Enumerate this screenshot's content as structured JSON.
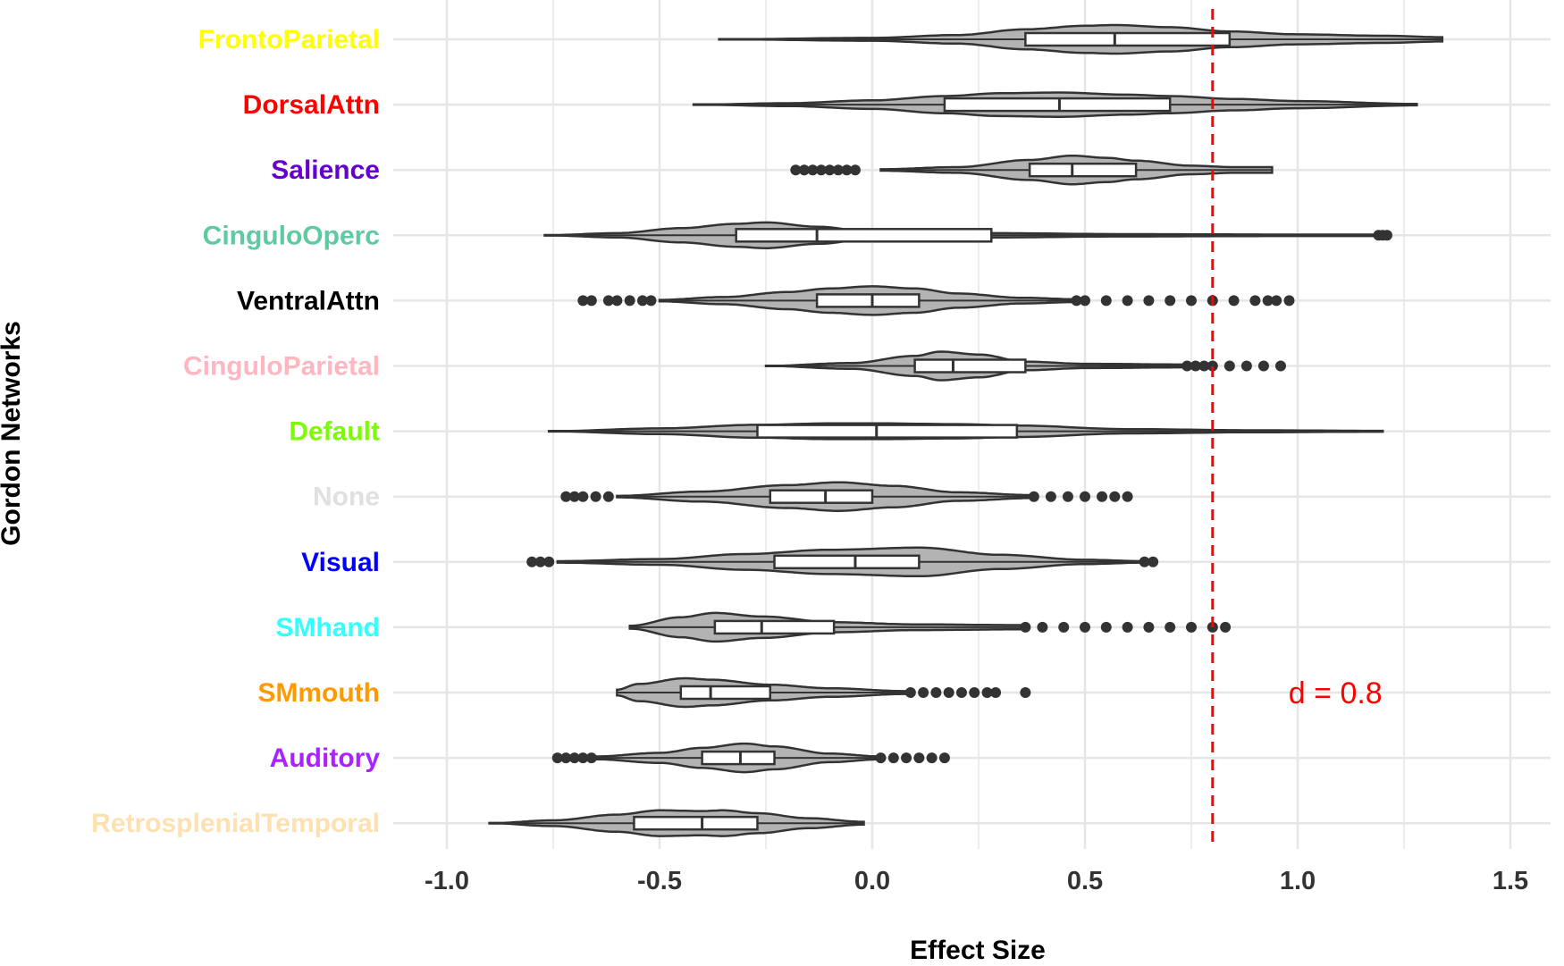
{
  "chart_data": {
    "type": "violin",
    "xlabel": "Effect Size",
    "ylabel": "Gordon Networks",
    "xlim": [
      -1.0,
      1.5
    ],
    "xticks": [
      "-1.0",
      "-0.5",
      "0.0",
      "0.5",
      "1.0",
      "1.5"
    ],
    "grid": true,
    "reference_line": {
      "x": 0.8,
      "color": "#ff0000",
      "style": "dashed",
      "label": "d = 0.8"
    },
    "categories": [
      {
        "name": "FrontoParietal",
        "color": "#ffff00",
        "min": -0.36,
        "max": 1.34,
        "q1": 0.36,
        "median": 0.57,
        "q3": 0.84,
        "density": [
          [
            -0.36,
            0.0
          ],
          [
            0.0,
            0.1
          ],
          [
            0.2,
            0.3
          ],
          [
            0.36,
            0.7
          ],
          [
            0.5,
            0.95
          ],
          [
            0.57,
            1.0
          ],
          [
            0.7,
            0.85
          ],
          [
            0.84,
            0.55
          ],
          [
            1.0,
            0.35
          ],
          [
            1.2,
            0.25
          ],
          [
            1.34,
            0.15
          ]
        ],
        "outliers": []
      },
      {
        "name": "DorsalAttn",
        "color": "#ff0000",
        "min": -0.42,
        "max": 1.28,
        "q1": 0.17,
        "median": 0.44,
        "q3": 0.7,
        "density": [
          [
            -0.42,
            0.0
          ],
          [
            -0.2,
            0.1
          ],
          [
            0.0,
            0.3
          ],
          [
            0.17,
            0.6
          ],
          [
            0.3,
            0.8
          ],
          [
            0.44,
            0.85
          ],
          [
            0.6,
            0.7
          ],
          [
            0.7,
            0.6
          ],
          [
            0.85,
            0.4
          ],
          [
            1.0,
            0.25
          ],
          [
            1.28,
            0.05
          ]
        ],
        "outliers": []
      },
      {
        "name": "Salience",
        "color": "#6600cc",
        "min": 0.02,
        "max": 0.94,
        "q1": 0.37,
        "median": 0.47,
        "q3": 0.62,
        "density": [
          [
            0.02,
            0.05
          ],
          [
            0.2,
            0.2
          ],
          [
            0.37,
            0.7
          ],
          [
            0.47,
            1.0
          ],
          [
            0.55,
            0.85
          ],
          [
            0.62,
            0.65
          ],
          [
            0.75,
            0.3
          ],
          [
            0.85,
            0.2
          ],
          [
            0.94,
            0.2
          ]
        ],
        "outliers": [
          -0.18,
          -0.16,
          -0.14,
          -0.12,
          -0.1,
          -0.08,
          -0.06,
          -0.04
        ]
      },
      {
        "name": "CinguloOperc",
        "color": "#5fc9a0",
        "min": -0.77,
        "max": 1.2,
        "q1": -0.32,
        "median": -0.13,
        "q3": 0.28,
        "density": [
          [
            -0.77,
            0.0
          ],
          [
            -0.6,
            0.15
          ],
          [
            -0.45,
            0.5
          ],
          [
            -0.32,
            0.8
          ],
          [
            -0.25,
            0.9
          ],
          [
            -0.13,
            0.6
          ],
          [
            0.0,
            0.25
          ],
          [
            0.28,
            0.15
          ],
          [
            0.6,
            0.08
          ],
          [
            1.0,
            0.05
          ],
          [
            1.2,
            0.05
          ]
        ],
        "outliers": [
          1.19,
          1.2,
          1.21
        ]
      },
      {
        "name": "VentralAttn",
        "color": "#000000",
        "min": -0.5,
        "max": 0.48,
        "q1": -0.13,
        "median": 0.0,
        "q3": 0.11,
        "density": [
          [
            -0.5,
            0.05
          ],
          [
            -0.35,
            0.25
          ],
          [
            -0.2,
            0.6
          ],
          [
            -0.1,
            0.85
          ],
          [
            0.0,
            1.0
          ],
          [
            0.1,
            0.85
          ],
          [
            0.2,
            0.5
          ],
          [
            0.35,
            0.2
          ],
          [
            0.48,
            0.1
          ]
        ],
        "outliers": [
          -0.68,
          -0.66,
          -0.62,
          -0.6,
          -0.57,
          -0.54,
          -0.52,
          0.48,
          0.5,
          0.55,
          0.6,
          0.65,
          0.7,
          0.75,
          0.8,
          0.85,
          0.9,
          0.93,
          0.95,
          0.98
        ]
      },
      {
        "name": "CinguloParietal",
        "color": "#ffb6c1",
        "min": -0.25,
        "max": 0.74,
        "q1": 0.1,
        "median": 0.19,
        "q3": 0.36,
        "density": [
          [
            -0.25,
            0.0
          ],
          [
            -0.05,
            0.2
          ],
          [
            0.1,
            0.7
          ],
          [
            0.16,
            1.0
          ],
          [
            0.25,
            0.8
          ],
          [
            0.36,
            0.3
          ],
          [
            0.5,
            0.15
          ],
          [
            0.74,
            0.1
          ]
        ],
        "outliers": [
          0.74,
          0.76,
          0.78,
          0.8,
          0.84,
          0.88,
          0.92,
          0.96
        ]
      },
      {
        "name": "Default",
        "color": "#7cfc00",
        "min": -0.76,
        "max": 1.2,
        "q1": -0.27,
        "median": 0.01,
        "q3": 0.34,
        "density": [
          [
            -0.76,
            0.0
          ],
          [
            -0.5,
            0.2
          ],
          [
            -0.27,
            0.45
          ],
          [
            -0.1,
            0.55
          ],
          [
            0.01,
            0.55
          ],
          [
            0.2,
            0.5
          ],
          [
            0.34,
            0.4
          ],
          [
            0.6,
            0.15
          ],
          [
            0.9,
            0.07
          ],
          [
            1.2,
            0.03
          ]
        ],
        "outliers": []
      },
      {
        "name": "None",
        "color": "#e0e0e0",
        "min": -0.6,
        "max": 0.38,
        "q1": -0.24,
        "median": -0.11,
        "q3": 0.0,
        "density": [
          [
            -0.6,
            0.05
          ],
          [
            -0.4,
            0.35
          ],
          [
            -0.2,
            0.8
          ],
          [
            -0.08,
            1.0
          ],
          [
            0.05,
            0.75
          ],
          [
            0.2,
            0.3
          ],
          [
            0.38,
            0.1
          ]
        ],
        "outliers": [
          -0.72,
          -0.7,
          -0.68,
          -0.65,
          -0.62,
          0.38,
          0.42,
          0.46,
          0.5,
          0.54,
          0.57,
          0.6
        ]
      },
      {
        "name": "Visual",
        "color": "#0000ff",
        "min": -0.74,
        "max": 0.64,
        "q1": -0.23,
        "median": -0.04,
        "q3": 0.11,
        "density": [
          [
            -0.74,
            0.05
          ],
          [
            -0.5,
            0.2
          ],
          [
            -0.3,
            0.55
          ],
          [
            -0.1,
            0.85
          ],
          [
            0.11,
            1.0
          ],
          [
            0.3,
            0.5
          ],
          [
            0.5,
            0.15
          ],
          [
            0.64,
            0.05
          ]
        ],
        "outliers": [
          -0.8,
          -0.78,
          -0.76,
          0.64,
          0.66
        ]
      },
      {
        "name": "SMhand",
        "color": "#33ffff",
        "min": -0.57,
        "max": 0.35,
        "q1": -0.37,
        "median": -0.26,
        "q3": -0.09,
        "density": [
          [
            -0.57,
            0.1
          ],
          [
            -0.45,
            0.7
          ],
          [
            -0.37,
            1.0
          ],
          [
            -0.26,
            0.75
          ],
          [
            -0.09,
            0.35
          ],
          [
            0.1,
            0.2
          ],
          [
            0.35,
            0.15
          ]
        ],
        "outliers": [
          0.36,
          0.4,
          0.45,
          0.5,
          0.55,
          0.6,
          0.65,
          0.7,
          0.75,
          0.8,
          0.83
        ]
      },
      {
        "name": "SMmouth",
        "color": "#ff9900",
        "min": -0.6,
        "max": 0.08,
        "q1": -0.45,
        "median": -0.38,
        "q3": -0.24,
        "density": [
          [
            -0.6,
            0.2
          ],
          [
            -0.55,
            0.6
          ],
          [
            -0.44,
            1.0
          ],
          [
            -0.38,
            0.9
          ],
          [
            -0.24,
            0.55
          ],
          [
            -0.1,
            0.3
          ],
          [
            0.08,
            0.1
          ]
        ],
        "outliers": [
          0.09,
          0.12,
          0.15,
          0.18,
          0.21,
          0.24,
          0.27,
          0.29,
          0.36
        ]
      },
      {
        "name": "Auditory",
        "color": "#aa22ff",
        "min": -0.65,
        "max": 0.02,
        "q1": -0.4,
        "median": -0.31,
        "q3": -0.23,
        "density": [
          [
            -0.65,
            0.1
          ],
          [
            -0.5,
            0.35
          ],
          [
            -0.4,
            0.7
          ],
          [
            -0.3,
            1.0
          ],
          [
            -0.23,
            0.8
          ],
          [
            -0.1,
            0.3
          ],
          [
            0.02,
            0.1
          ]
        ],
        "outliers": [
          -0.74,
          -0.72,
          -0.7,
          -0.68,
          -0.66,
          0.02,
          0.05,
          0.08,
          0.11,
          0.14,
          0.17
        ]
      },
      {
        "name": "RetrosplenialTemporal",
        "color": "#ffe0b0",
        "min": -0.9,
        "max": -0.02,
        "q1": -0.56,
        "median": -0.4,
        "q3": -0.27,
        "density": [
          [
            -0.9,
            0.0
          ],
          [
            -0.75,
            0.2
          ],
          [
            -0.6,
            0.6
          ],
          [
            -0.5,
            0.9
          ],
          [
            -0.4,
            0.85
          ],
          [
            -0.35,
            0.9
          ],
          [
            -0.27,
            0.7
          ],
          [
            -0.15,
            0.35
          ],
          [
            -0.02,
            0.1
          ]
        ],
        "outliers": []
      }
    ]
  }
}
